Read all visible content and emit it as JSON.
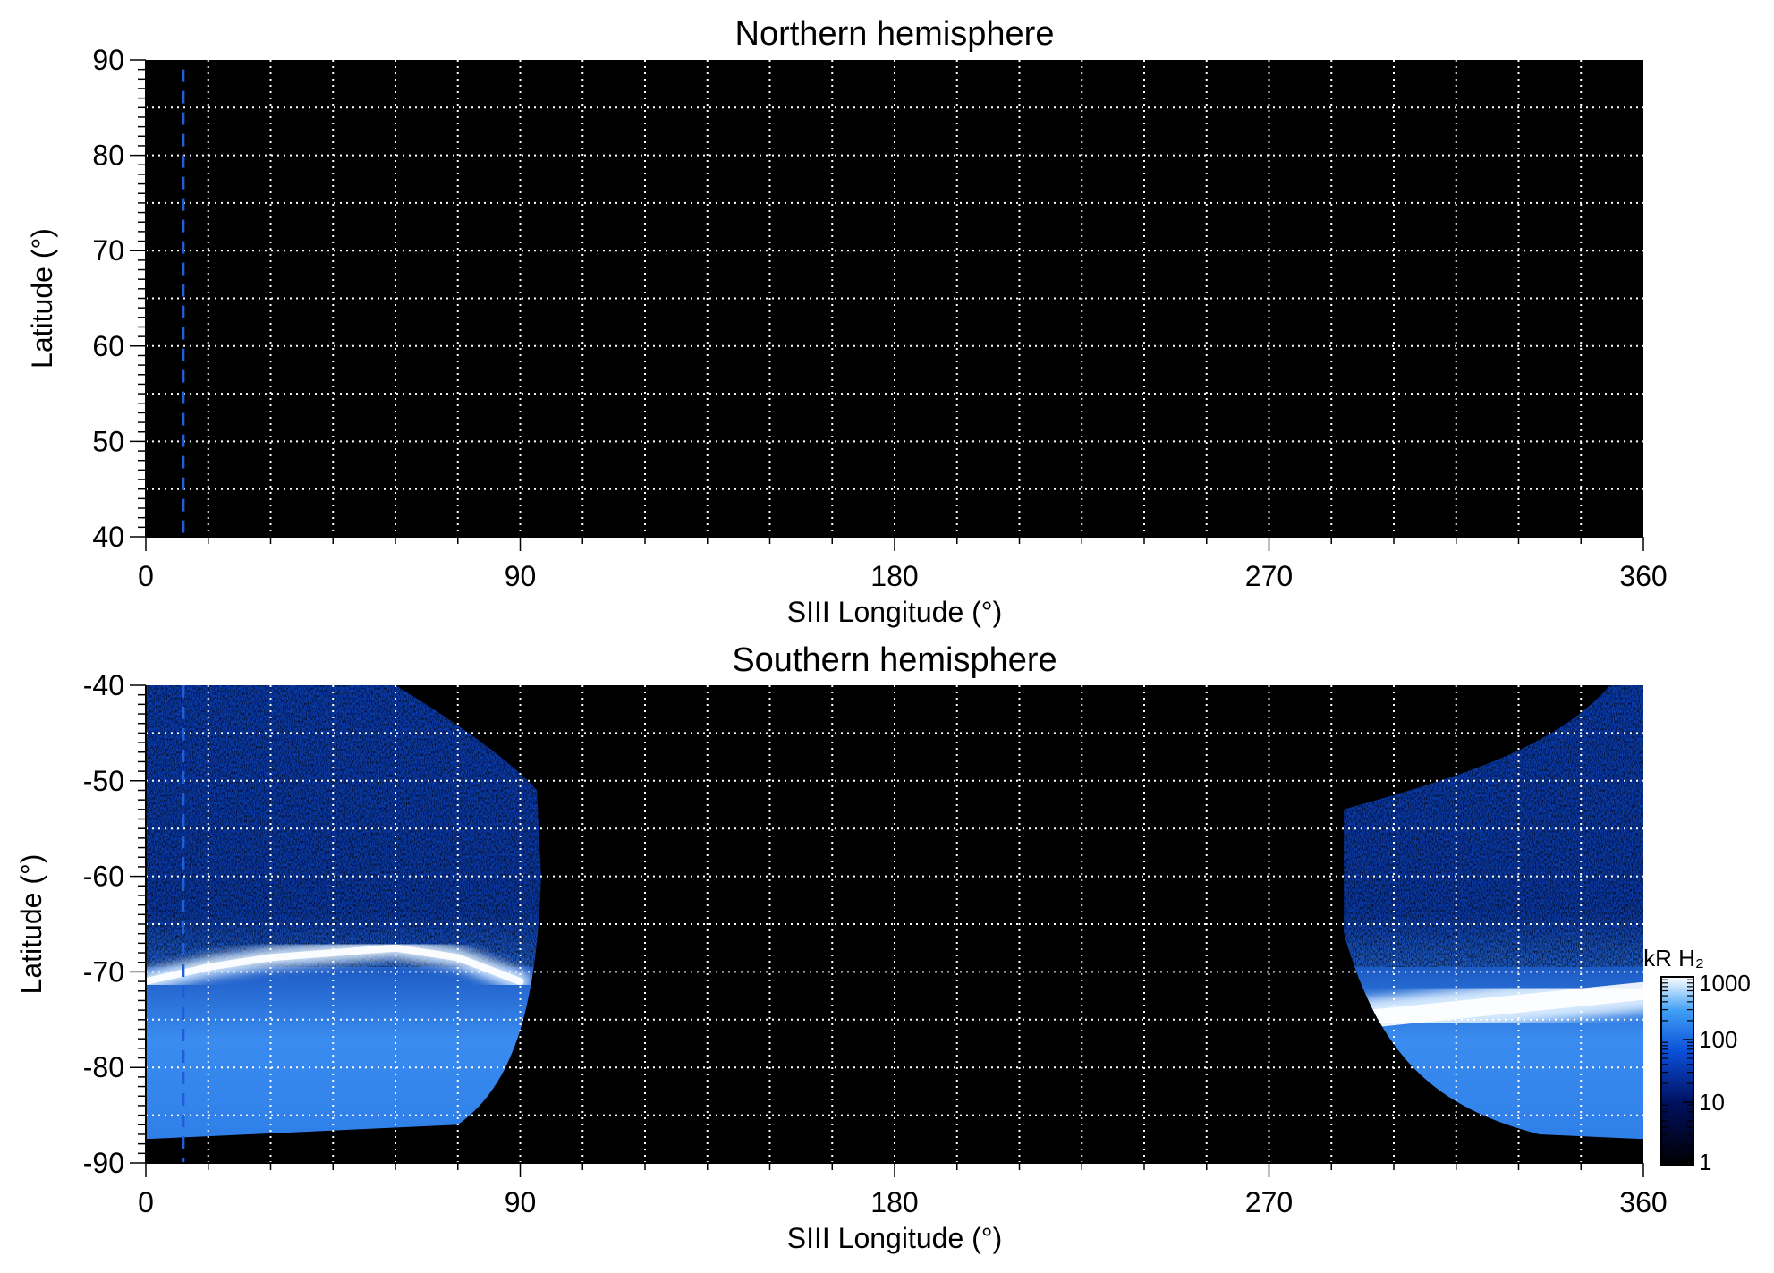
{
  "chart_data": [
    {
      "type": "heatmap",
      "title": "Northern hemisphere",
      "xlabel": "SIII Longitude (°)",
      "ylabel": "Latitude (°)",
      "xlim": [
        0,
        360
      ],
      "ylim": [
        40,
        90
      ],
      "xticks": [
        0,
        90,
        180,
        270,
        360
      ],
      "xtick_labels": [
        "0",
        "90",
        "180",
        "270",
        "360"
      ],
      "yticks": [
        40,
        50,
        60,
        70,
        80,
        90
      ],
      "ytick_labels": [
        "40",
        "50",
        "60",
        "70",
        "80",
        "90"
      ],
      "grid": true,
      "grid_x_step": 15,
      "grid_y_step": 5,
      "background_color": "#000000",
      "marker_line": {
        "longitude": 9,
        "style": "dashed",
        "color": "#1f5fd6"
      },
      "emission_regions": []
    },
    {
      "type": "heatmap",
      "title": "Southern hemisphere",
      "xlabel": "SIII Longitude (°)",
      "ylabel": "Latitude (°)",
      "xlim": [
        0,
        360
      ],
      "ylim": [
        -90,
        -40
      ],
      "xticks": [
        0,
        90,
        180,
        270,
        360
      ],
      "xtick_labels": [
        "0",
        "90",
        "180",
        "270",
        "360"
      ],
      "yticks": [
        -40,
        -50,
        -60,
        -70,
        -80,
        -90
      ],
      "ytick_labels": [
        "-40",
        "-50",
        "-60",
        "-70",
        "-80",
        "-90"
      ],
      "grid": true,
      "grid_x_step": 15,
      "grid_y_step": 5,
      "background_color": "#000000",
      "marker_line": {
        "longitude": 9,
        "style": "dashed",
        "color": "#1f5fd6"
      },
      "emission_regions": [
        {
          "lon_min": 0,
          "lon_max": 95,
          "lat_min": -87.5,
          "lat_max": -40,
          "main_oval_lat": [
            -71,
            -69.5,
            -68.5,
            -68,
            -67.5,
            -68.5,
            -71
          ]
        },
        {
          "lon_min": 284,
          "lon_max": 360,
          "lat_min": -87.5,
          "lat_max": -40,
          "main_oval_lat": [
            -75,
            -74.5,
            -74,
            -73.5,
            -73,
            -72.5,
            -72
          ]
        }
      ],
      "colorbar": {
        "title": "kR H₂",
        "scale": "log",
        "range": [
          1,
          1000
        ],
        "ticks": [
          1,
          10,
          100,
          1000
        ],
        "tick_labels": [
          "1",
          "10",
          "100",
          "1000"
        ],
        "colors": [
          "#000000",
          "#00105e",
          "#0a4fd8",
          "#3f9ff5",
          "#ffffff"
        ],
        "placement": "right"
      }
    }
  ]
}
